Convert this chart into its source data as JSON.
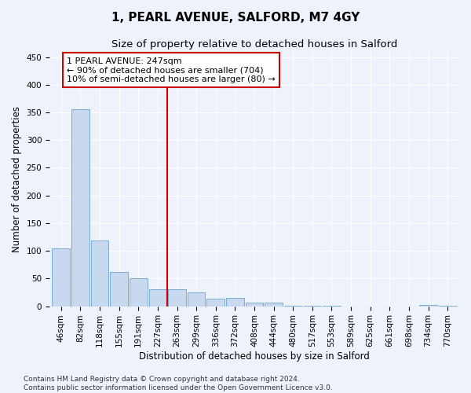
{
  "title": "1, PEARL AVENUE, SALFORD, M7 4GY",
  "subtitle": "Size of property relative to detached houses in Salford",
  "xlabel": "Distribution of detached houses by size in Salford",
  "ylabel": "Number of detached properties",
  "categories": [
    "46sqm",
    "82sqm",
    "118sqm",
    "155sqm",
    "191sqm",
    "227sqm",
    "263sqm",
    "299sqm",
    "336sqm",
    "372sqm",
    "408sqm",
    "444sqm",
    "480sqm",
    "517sqm",
    "553sqm",
    "589sqm",
    "625sqm",
    "661sqm",
    "698sqm",
    "734sqm",
    "770sqm"
  ],
  "values": [
    104,
    356,
    119,
    62,
    50,
    30,
    30,
    25,
    13,
    15,
    6,
    6,
    1,
    1,
    1,
    0,
    0,
    0,
    0,
    2,
    1
  ],
  "bar_color": "#c8d8ee",
  "bar_edge_color": "#7aadd4",
  "background_color": "#edf2fb",
  "grid_color": "#ffffff",
  "vline_x": 5.5,
  "vline_color": "#cc0000",
  "annotation_text": "1 PEARL AVENUE: 247sqm\n← 90% of detached houses are smaller (704)\n10% of semi-detached houses are larger (80) →",
  "annotation_box_color": "white",
  "annotation_box_edge_color": "#cc0000",
  "ylim": [
    0,
    460
  ],
  "yticks": [
    0,
    50,
    100,
    150,
    200,
    250,
    300,
    350,
    400,
    450
  ],
  "footnote": "Contains HM Land Registry data © Crown copyright and database right 2024.\nContains public sector information licensed under the Open Government Licence v3.0.",
  "title_fontsize": 11,
  "subtitle_fontsize": 9.5,
  "label_fontsize": 8.5,
  "tick_fontsize": 7.5,
  "footnote_fontsize": 6.5
}
